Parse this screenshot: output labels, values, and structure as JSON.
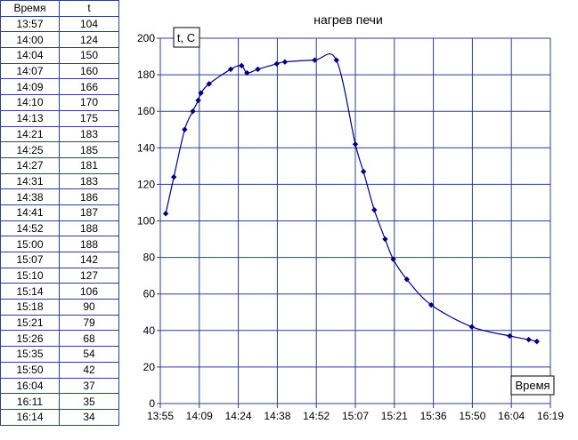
{
  "table": {
    "headers": [
      "Время",
      "t"
    ],
    "rows": [
      [
        "13:57",
        "104"
      ],
      [
        "14:00",
        "124"
      ],
      [
        "14:04",
        "150"
      ],
      [
        "14:07",
        "160"
      ],
      [
        "14:09",
        "166"
      ],
      [
        "14:10",
        "170"
      ],
      [
        "14:13",
        "175"
      ],
      [
        "14:21",
        "183"
      ],
      [
        "14:25",
        "185"
      ],
      [
        "14:27",
        "181"
      ],
      [
        "14:31",
        "183"
      ],
      [
        "14:38",
        "186"
      ],
      [
        "14:41",
        "187"
      ],
      [
        "14:52",
        "188"
      ],
      [
        "15:00",
        "188"
      ],
      [
        "15:07",
        "142"
      ],
      [
        "15:10",
        "127"
      ],
      [
        "15:14",
        "106"
      ],
      [
        "15:18",
        "90"
      ],
      [
        "15:21",
        "79"
      ],
      [
        "15:26",
        "68"
      ],
      [
        "15:35",
        "54"
      ],
      [
        "15:50",
        "42"
      ],
      [
        "16:04",
        "37"
      ],
      [
        "16:11",
        "35"
      ],
      [
        "16:14",
        "34"
      ]
    ]
  },
  "chart_data": {
    "type": "line",
    "title": "нагрев печи",
    "ylabel": "t, C",
    "xlabel": "Время",
    "x": [
      "13:57",
      "14:00",
      "14:04",
      "14:07",
      "14:09",
      "14:10",
      "14:13",
      "14:21",
      "14:25",
      "14:27",
      "14:31",
      "14:38",
      "14:41",
      "14:52",
      "15:00",
      "15:07",
      "15:10",
      "15:14",
      "15:18",
      "15:21",
      "15:26",
      "15:35",
      "15:50",
      "16:04",
      "16:11",
      "16:14"
    ],
    "y": [
      104,
      124,
      150,
      160,
      166,
      170,
      175,
      183,
      185,
      181,
      183,
      186,
      187,
      188,
      188,
      142,
      127,
      106,
      90,
      79,
      68,
      54,
      42,
      37,
      35,
      34
    ],
    "xlim": [
      "13:55",
      "16:19"
    ],
    "ylim": [
      0,
      200
    ],
    "x_ticks": [
      "13:55",
      "14:09",
      "14:24",
      "14:38",
      "14:52",
      "15:07",
      "15:21",
      "15:36",
      "15:50",
      "16:04",
      "16:19"
    ],
    "y_ticks": [
      0,
      20,
      40,
      60,
      80,
      100,
      120,
      140,
      160,
      180,
      200
    ],
    "grid": true,
    "line_color": "#000080",
    "marker_color": "#000080",
    "grid_color": "#2b3f8f"
  }
}
